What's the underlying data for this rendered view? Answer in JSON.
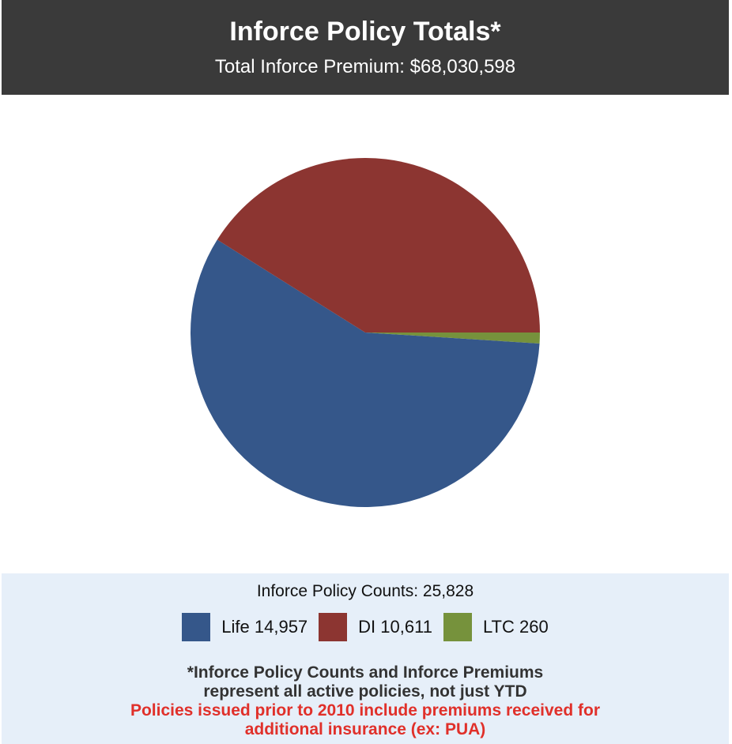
{
  "chart_data": {
    "type": "pie",
    "title": "Inforce Policy Totals*",
    "subtitle": "Total Inforce Premium: $68,030,598",
    "total_label": "Inforce Policy Counts: 25,828",
    "categories": [
      "LTC",
      "Life",
      "DI"
    ],
    "values": [
      260,
      14957,
      10611
    ],
    "value_labels": [
      "260",
      "14,957",
      "10,611"
    ],
    "colors": [
      "#76923c",
      "#35578a",
      "#8c3531"
    ],
    "legend_order": [
      1,
      2,
      0
    ],
    "footnote": [
      "*Inforce Policy Counts and Inforce Premiums",
      "represent all active policies, not just YTD"
    ],
    "warning": [
      "Policies issued prior to 2010 include premiums received for",
      "additional insurance (ex: PUA)"
    ]
  }
}
